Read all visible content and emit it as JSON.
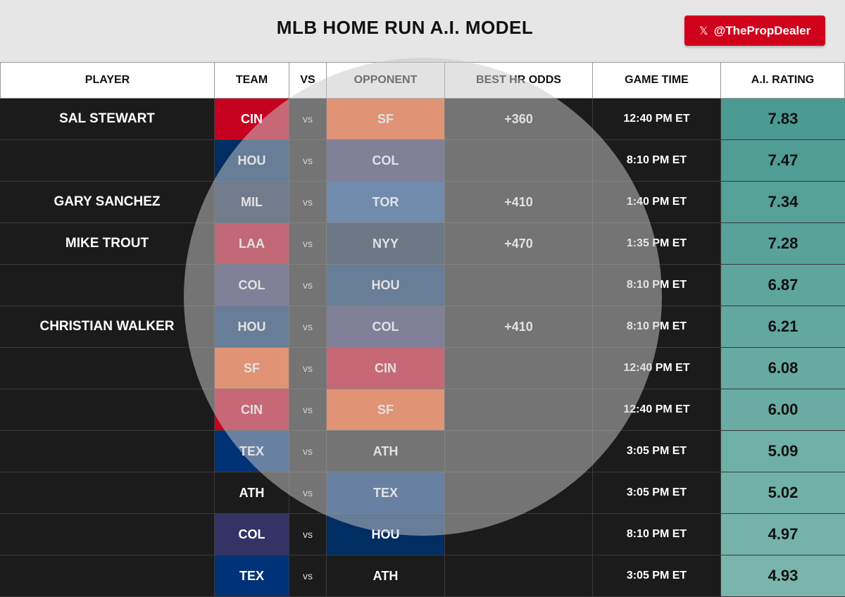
{
  "header": {
    "title": "MLB HOME RUN A.I. MODEL",
    "social_handle": "@ThePropDealer",
    "social_icon": "x-logo-icon"
  },
  "table": {
    "columns": [
      "PLAYER",
      "TEAM",
      "VS",
      "OPPONENT",
      "BEST HR ODDS",
      "GAME TIME",
      "A.I. RATING"
    ],
    "rows": [
      {
        "player": "SAL STEWART",
        "team": "CIN",
        "vs": "vs",
        "opponent": "SF",
        "odds": "+360",
        "time": "12:40 PM ET",
        "rating": "7.83",
        "team_color": "#c6011f",
        "opp_color": "#fd5a1e",
        "rating_color": "#4a9a91"
      },
      {
        "player": "",
        "team": "HOU",
        "vs": "vs",
        "opponent": "COL",
        "odds": "",
        "time": "8:10 PM ET",
        "rating": "7.47",
        "team_color": "#002d62",
        "opp_color": "#333366",
        "rating_color": "#509d94"
      },
      {
        "player": "GARY SANCHEZ",
        "team": "MIL",
        "vs": "vs",
        "opponent": "TOR",
        "odds": "+410",
        "time": "1:40 PM ET",
        "rating": "7.34",
        "team_color": "#12284b",
        "opp_color": "#134a8e",
        "rating_color": "#55a097"
      },
      {
        "player": "MIKE TROUT",
        "team": "LAA",
        "vs": "vs",
        "opponent": "NYY",
        "odds": "+470",
        "time": "1:35 PM ET",
        "rating": "7.28",
        "team_color": "#ba0021",
        "opp_color": "#0c2340",
        "rating_color": "#58a299"
      },
      {
        "player": "",
        "team": "COL",
        "vs": "vs",
        "opponent": "HOU",
        "odds": "",
        "time": "8:10 PM ET",
        "rating": "6.87",
        "team_color": "#333366",
        "opp_color": "#002d62",
        "rating_color": "#5ea59c"
      },
      {
        "player": "CHRISTIAN WALKER",
        "team": "HOU",
        "vs": "vs",
        "opponent": "COL",
        "odds": "+410",
        "time": "8:10 PM ET",
        "rating": "6.21",
        "team_color": "#002d62",
        "opp_color": "#333366",
        "rating_color": "#63a89f"
      },
      {
        "player": "",
        "team": "SF",
        "vs": "vs",
        "opponent": "CIN",
        "odds": "",
        "time": "12:40 PM ET",
        "rating": "6.08",
        "team_color": "#fd5a1e",
        "opp_color": "#c6011f",
        "rating_color": "#67aaa1"
      },
      {
        "player": "",
        "team": "CIN",
        "vs": "vs",
        "opponent": "SF",
        "odds": "",
        "time": "12:40 PM ET",
        "rating": "6.00",
        "team_color": "#c6011f",
        "opp_color": "#fd5a1e",
        "rating_color": "#6aaca3"
      },
      {
        "player": "",
        "team": "TEX",
        "vs": "vs",
        "opponent": "ATH",
        "odds": "",
        "time": "3:05 PM ET",
        "rating": "5.09",
        "team_color": "#003278",
        "opp_color": "#1b1b1b",
        "rating_color": "#6eafa6"
      },
      {
        "player": "",
        "team": "ATH",
        "vs": "vs",
        "opponent": "TEX",
        "odds": "",
        "time": "3:05 PM ET",
        "rating": "5.02",
        "team_color": "#1b1b1b",
        "opp_color": "#003278",
        "rating_color": "#72b1a8"
      },
      {
        "player": "",
        "team": "COL",
        "vs": "vs",
        "opponent": "HOU",
        "odds": "",
        "time": "8:10 PM ET",
        "rating": "4.97",
        "team_color": "#333366",
        "opp_color": "#002d62",
        "rating_color": "#75b3aa"
      },
      {
        "player": "",
        "team": "TEX",
        "vs": "vs",
        "opponent": "ATH",
        "odds": "",
        "time": "3:05 PM ET",
        "rating": "4.93",
        "team_color": "#003278",
        "opp_color": "#1b1b1b",
        "rating_color": "#79b5ac"
      }
    ]
  }
}
